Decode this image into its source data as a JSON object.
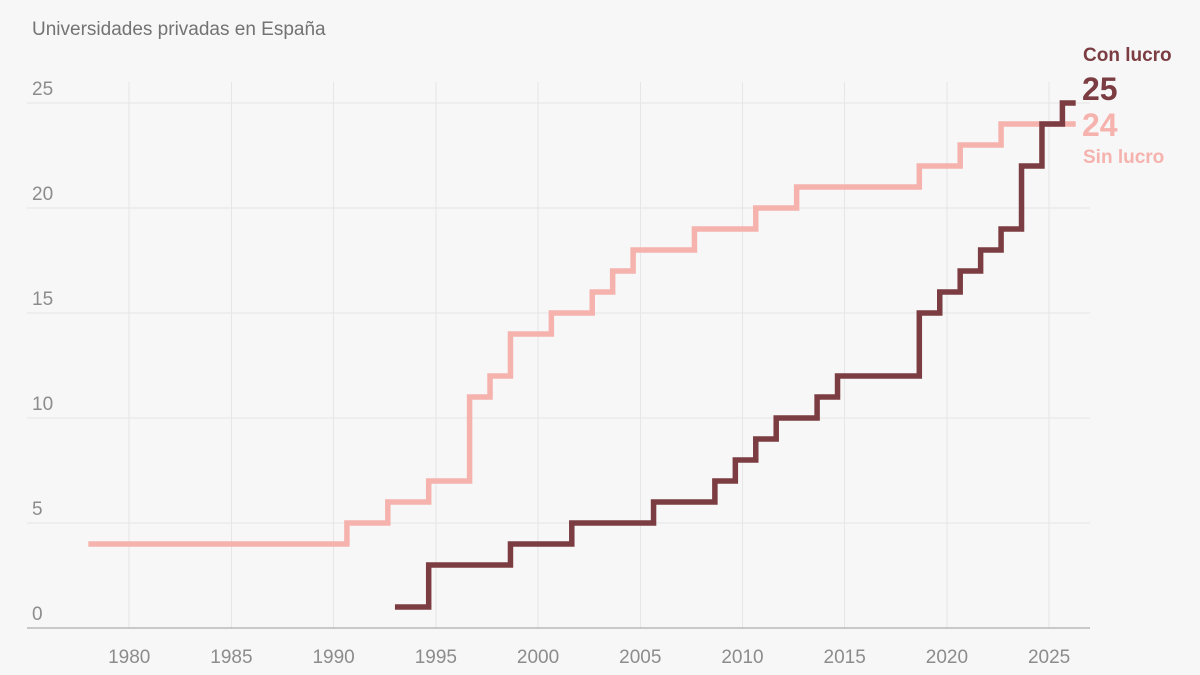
{
  "colors": {
    "background": "#f7f7f7",
    "gridline": "#e6e6e6",
    "axis_line": "#9b9b9b",
    "axis_text": "#8c8c8c",
    "title_text": "#737373"
  },
  "chart_data": {
    "type": "line",
    "step": "after",
    "title": "Universidades privadas en España",
    "xlim": [
      1975,
      2027
    ],
    "ylim": [
      0,
      26
    ],
    "x_ticks": [
      1980,
      1985,
      1990,
      1995,
      2000,
      2005,
      2010,
      2015,
      2020,
      2025
    ],
    "y_ticks": [
      0,
      5,
      10,
      15,
      20,
      25
    ],
    "grid": true,
    "legend_position": "top-right",
    "series": [
      {
        "name": "Con lucro",
        "color": "#7b3d42",
        "end_label": "25",
        "x": [
          1993.0,
          1994.65,
          1998.65,
          2001.65,
          2005.65,
          2008.65,
          2009.65,
          2010.65,
          2011.65,
          2013.65,
          2014.65,
          2018.65,
          2019.65,
          2020.65,
          2021.65,
          2022.65,
          2023.65,
          2024.65,
          2025.65,
          2026.3
        ],
        "y": [
          1,
          3,
          4,
          5,
          6,
          7,
          8,
          9,
          10,
          11,
          12,
          15,
          16,
          17,
          18,
          19,
          22,
          24,
          25,
          25
        ]
      },
      {
        "name": "Sin lucro",
        "color": "#f6b3ae",
        "end_label": "24",
        "x": [
          1978.0,
          1990.65,
          1992.65,
          1994.65,
          1996.65,
          1997.65,
          1998.65,
          2000.65,
          2002.65,
          2003.65,
          2004.65,
          2007.65,
          2010.65,
          2012.65,
          2018.65,
          2020.65,
          2022.65,
          2026.3
        ],
        "y": [
          4,
          5,
          6,
          7,
          11,
          12,
          14,
          15,
          16,
          17,
          18,
          19,
          20,
          21,
          22,
          23,
          24,
          24
        ]
      }
    ]
  }
}
